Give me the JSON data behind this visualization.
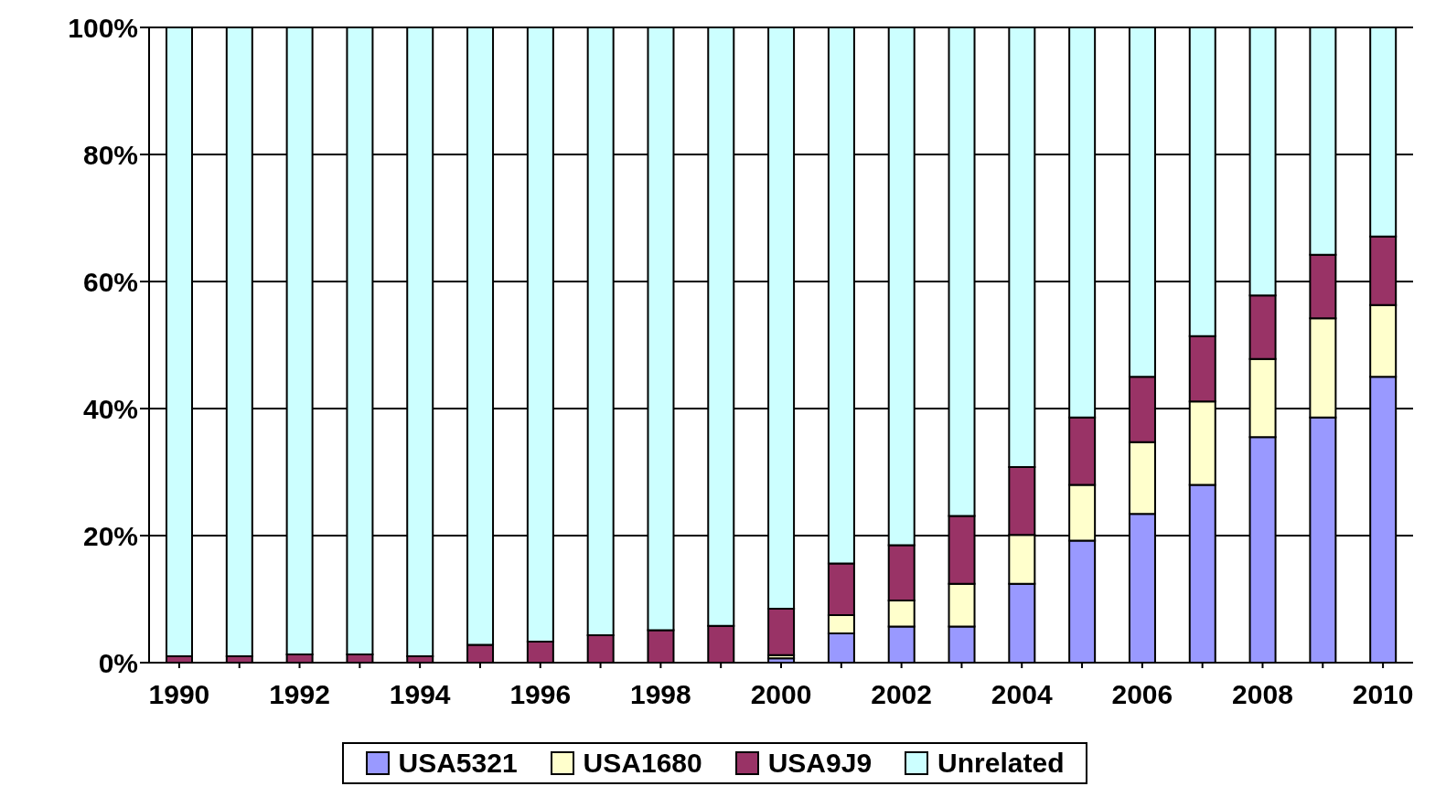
{
  "chart_data": {
    "type": "bar",
    "stacked": true,
    "categories": [
      "1990",
      null,
      "1992",
      null,
      "1994",
      null,
      "1996",
      null,
      "1998",
      null,
      "2000",
      null,
      "2002",
      null,
      "2004",
      null,
      "2006",
      null,
      "2008",
      null,
      "2010"
    ],
    "series": [
      {
        "name": "USA5321",
        "color": "#9999ff",
        "values": [
          0,
          0,
          0,
          0,
          0,
          0,
          0,
          0,
          null,
          null,
          0.7,
          4.6,
          5.7,
          5.7,
          12.4,
          19.2,
          23.4,
          28.0,
          35.5,
          38.6,
          45.0
        ]
      },
      {
        "name": "USA1680",
        "color": "#ffffcc",
        "values": [
          0,
          0,
          0,
          0,
          0,
          0,
          0,
          0,
          0,
          0,
          0.5,
          2.9,
          4.1,
          6.7,
          7.7,
          8.8,
          11.3,
          13.1,
          12.3,
          15.6,
          11.3
        ]
      },
      {
        "name": "USA9J9",
        "color": "#993366",
        "values": [
          1.0,
          1.0,
          1.3,
          1.3,
          1.0,
          2.8,
          3.3,
          4.3,
          5.1,
          5.8,
          7.3,
          8.1,
          8.7,
          10.7,
          10.7,
          10.6,
          10.3,
          10.3,
          10.0,
          10.0,
          10.8
        ]
      },
      {
        "name": "Unrelated",
        "color": "#ccffff",
        "values": [
          99.0,
          99.0,
          98.7,
          98.7,
          99.0,
          97.2,
          96.7,
          95.7,
          94.9,
          94.2,
          91.5,
          84.4,
          81.5,
          76.9,
          69.2,
          61.4,
          55.0,
          48.6,
          42.2,
          35.8,
          32.9
        ]
      }
    ],
    "ylim": [
      0,
      100
    ],
    "yticks": [
      {
        "value": 0,
        "label": "0%"
      },
      {
        "value": 20,
        "label": "20%"
      },
      {
        "value": 40,
        "label": "40%"
      },
      {
        "value": 60,
        "label": "60%"
      },
      {
        "value": 80,
        "label": "80%"
      },
      {
        "value": 100,
        "label": "100%"
      }
    ],
    "grid": "y",
    "legend": "bottom"
  }
}
